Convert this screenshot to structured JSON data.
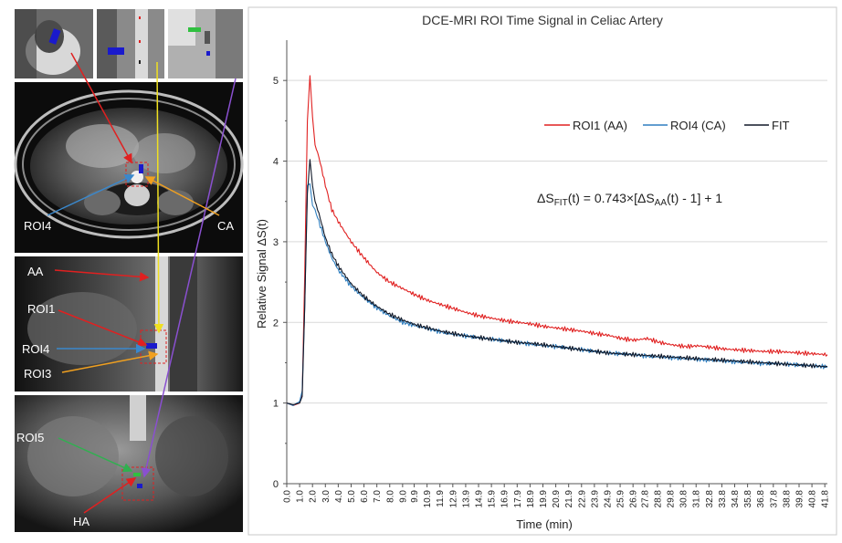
{
  "panels": {
    "roi_labels": {
      "roi4_axial": "ROI4",
      "ca": "CA",
      "aa": "AA",
      "roi1": "ROI1",
      "roi4_sag": "ROI4",
      "roi3": "ROI3",
      "roi5": "ROI5",
      "ha": "HA"
    }
  },
  "chart_data": {
    "type": "line",
    "title": "DCE-MRI ROI Time Signal in Celiac Artery",
    "xlabel": "Time (min)",
    "ylabel": "Relative Signal ΔS(t)",
    "ylim": [
      0,
      5.5
    ],
    "y_ticks": [
      "0",
      "1",
      "2",
      "3",
      "4",
      "5"
    ],
    "xlim": [
      0,
      42
    ],
    "x_tick_values": [
      0.0,
      1.0,
      2.0,
      3.0,
      4.0,
      5.0,
      6.0,
      7.0,
      8.0,
      9.0,
      9.9,
      10.9,
      11.9,
      12.9,
      13.9,
      14.9,
      15.9,
      16.9,
      17.9,
      18.9,
      19.9,
      20.9,
      21.9,
      22.9,
      23.9,
      24.9,
      25.9,
      26.9,
      27.8,
      28.8,
      29.8,
      30.8,
      31.8,
      32.8,
      33.8,
      34.8,
      35.8,
      36.8,
      37.8,
      38.8,
      39.8,
      40.8,
      41.8
    ],
    "x_tick_labels": [
      "0.0",
      "1.0",
      "2.0",
      "3.0",
      "4.0",
      "5.0",
      "6.0",
      "7.0",
      "8.0",
      "9.0",
      "9.9",
      "10.9",
      "11.9",
      "12.9",
      "13.9",
      "14.9",
      "15.9",
      "16.9",
      "17.9",
      "18.9",
      "19.9",
      "20.9",
      "21.9",
      "22.9",
      "23.9",
      "24.9",
      "25.9",
      "26.9",
      "27.8",
      "28.8",
      "29.8",
      "30.8",
      "31.8",
      "32.8",
      "33.8",
      "34.8",
      "35.8",
      "36.8",
      "37.8",
      "38.8",
      "39.8",
      "40.8",
      "41.8"
    ],
    "grid": "horizontal",
    "legend_position": "top-right",
    "series": [
      {
        "name": "ROI1 (AA)",
        "color": "#e02020",
        "x": [
          0.0,
          0.5,
          1.0,
          1.2,
          1.4,
          1.6,
          1.8,
          2.0,
          2.2,
          2.5,
          3.0,
          3.5,
          4.0,
          5.0,
          6.0,
          7.0,
          8.0,
          9.0,
          10.0,
          11.0,
          12.0,
          13.0,
          14.0,
          15.0,
          16.0,
          17.0,
          18.0,
          19.0,
          20.0,
          21.0,
          22.0,
          23.0,
          24.0,
          25.0,
          26.0,
          27.0,
          28.0,
          29.0,
          30.0,
          31.0,
          32.0,
          33.0,
          34.0,
          35.0,
          36.0,
          37.0,
          38.0,
          39.0,
          40.0,
          41.0,
          42.0
        ],
        "values": [
          1.0,
          0.97,
          1.0,
          1.1,
          2.6,
          4.5,
          5.06,
          4.55,
          4.2,
          4.05,
          3.7,
          3.4,
          3.25,
          3.0,
          2.8,
          2.62,
          2.5,
          2.42,
          2.34,
          2.27,
          2.22,
          2.17,
          2.12,
          2.08,
          2.05,
          2.02,
          2.0,
          1.98,
          1.95,
          1.93,
          1.91,
          1.89,
          1.86,
          1.84,
          1.8,
          1.78,
          1.8,
          1.75,
          1.72,
          1.7,
          1.71,
          1.69,
          1.67,
          1.66,
          1.65,
          1.64,
          1.64,
          1.63,
          1.62,
          1.61,
          1.6
        ]
      },
      {
        "name": "ROI4 (CA)",
        "color": "#2f7fc0",
        "x": [
          0.0,
          0.5,
          1.0,
          1.2,
          1.4,
          1.6,
          1.8,
          2.0,
          2.2,
          2.5,
          3.0,
          3.5,
          4.0,
          5.0,
          6.0,
          7.0,
          8.0,
          9.0,
          10.0,
          11.0,
          12.0,
          13.0,
          14.0,
          15.0,
          16.0,
          17.0,
          18.0,
          19.0,
          20.0,
          21.0,
          22.0,
          23.0,
          24.0,
          25.0,
          26.0,
          27.0,
          28.0,
          29.0,
          30.0,
          31.0,
          32.0,
          33.0,
          34.0,
          35.0,
          36.0,
          37.0,
          38.0,
          39.0,
          40.0,
          41.0,
          42.0
        ],
        "values": [
          1.0,
          0.97,
          1.02,
          1.15,
          2.2,
          3.7,
          3.72,
          3.45,
          3.4,
          3.25,
          3.0,
          2.8,
          2.65,
          2.45,
          2.3,
          2.18,
          2.08,
          2.0,
          1.96,
          1.92,
          1.88,
          1.85,
          1.83,
          1.81,
          1.79,
          1.77,
          1.75,
          1.73,
          1.71,
          1.7,
          1.68,
          1.66,
          1.64,
          1.62,
          1.61,
          1.6,
          1.58,
          1.57,
          1.56,
          1.55,
          1.54,
          1.53,
          1.52,
          1.51,
          1.5,
          1.49,
          1.49,
          1.48,
          1.47,
          1.46,
          1.45
        ]
      },
      {
        "name": "FIT",
        "color": "#101828",
        "x": [
          0.0,
          0.5,
          1.0,
          1.2,
          1.4,
          1.6,
          1.8,
          2.0,
          2.2,
          2.5,
          3.0,
          3.5,
          4.0,
          5.0,
          6.0,
          7.0,
          8.0,
          9.0,
          10.0,
          11.0,
          12.0,
          13.0,
          14.0,
          15.0,
          16.0,
          17.0,
          18.0,
          19.0,
          20.0,
          21.0,
          22.0,
          23.0,
          24.0,
          25.0,
          26.0,
          27.0,
          28.0,
          29.0,
          30.0,
          31.0,
          32.0,
          33.0,
          34.0,
          35.0,
          36.0,
          37.0,
          38.0,
          39.0,
          40.0,
          41.0,
          42.0
        ],
        "values": [
          1.0,
          0.98,
          1.0,
          1.08,
          2.2,
          3.6,
          4.02,
          3.7,
          3.5,
          3.35,
          3.05,
          2.85,
          2.7,
          2.48,
          2.32,
          2.2,
          2.1,
          2.03,
          1.97,
          1.93,
          1.89,
          1.86,
          1.83,
          1.81,
          1.79,
          1.77,
          1.75,
          1.74,
          1.72,
          1.7,
          1.68,
          1.66,
          1.64,
          1.62,
          1.61,
          1.6,
          1.59,
          1.58,
          1.57,
          1.56,
          1.55,
          1.54,
          1.53,
          1.52,
          1.51,
          1.5,
          1.49,
          1.48,
          1.47,
          1.46,
          1.45
        ]
      }
    ],
    "equation": {
      "lhs": "ΔS",
      "lhs_sub": "FIT",
      "mid": "(t)  = 0.743×[ΔS",
      "mid_sub": "AA",
      "rhs": "(t) - 1] + 1"
    }
  }
}
